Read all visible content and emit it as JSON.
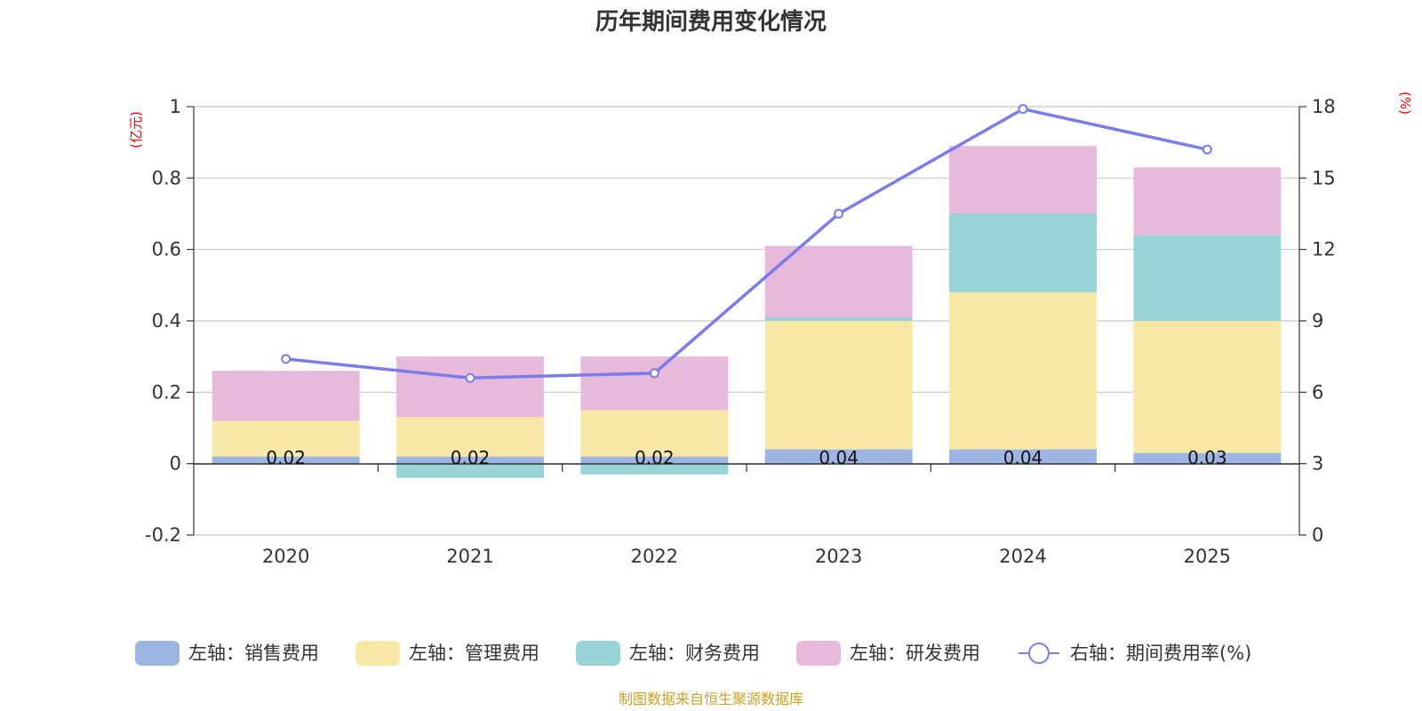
{
  "chart_data": {
    "type": "bar",
    "title": "历年期间费用变化情况",
    "categories": [
      "2020",
      "2021",
      "2022",
      "2023",
      "2024",
      "2025"
    ],
    "series": [
      {
        "name": "左轴：销售费用",
        "axis": "left",
        "color": "#9db5e3",
        "values": [
          0.02,
          0.02,
          0.02,
          0.04,
          0.04,
          0.03
        ]
      },
      {
        "name": "左轴：管理费用",
        "axis": "left",
        "color": "#f8e8a8",
        "values": [
          0.1,
          0.11,
          0.13,
          0.36,
          0.44,
          0.37
        ]
      },
      {
        "name": "左轴：财务费用",
        "axis": "left",
        "color": "#98d4d6",
        "values": [
          0.0,
          -0.04,
          -0.03,
          0.01,
          0.22,
          0.24
        ]
      },
      {
        "name": "左轴：研发费用",
        "axis": "left",
        "color": "#e7b9db",
        "values": [
          0.14,
          0.17,
          0.15,
          0.2,
          0.19,
          0.19
        ]
      },
      {
        "name": "右轴：期间费用率(%)",
        "axis": "right",
        "type": "line",
        "color": "#7b7bea",
        "values": [
          7.4,
          6.6,
          6.8,
          13.5,
          17.9,
          16.2
        ]
      }
    ],
    "data_labels": [
      "0.02",
      "0.02",
      "0.02",
      "0.04",
      "0.04",
      "0.03"
    ],
    "left_axis": {
      "unit": "(亿元)",
      "ylim": [
        -0.2,
        1
      ],
      "ticks": [
        "1",
        "0.8",
        "0.6",
        "0.4",
        "0.2",
        "0",
        "-0.2"
      ],
      "tick_values": [
        1,
        0.8,
        0.6,
        0.4,
        0.2,
        0,
        -0.2
      ]
    },
    "right_axis": {
      "unit": "(%)",
      "ylim": [
        0,
        18
      ],
      "ticks": [
        "18",
        "15",
        "12",
        "9",
        "6",
        "3",
        "0"
      ],
      "tick_values": [
        18,
        15,
        12,
        9,
        6,
        3,
        0
      ]
    },
    "grid": true,
    "legend_position": "bottom",
    "source": "制图数据来自恒生聚源数据库"
  }
}
